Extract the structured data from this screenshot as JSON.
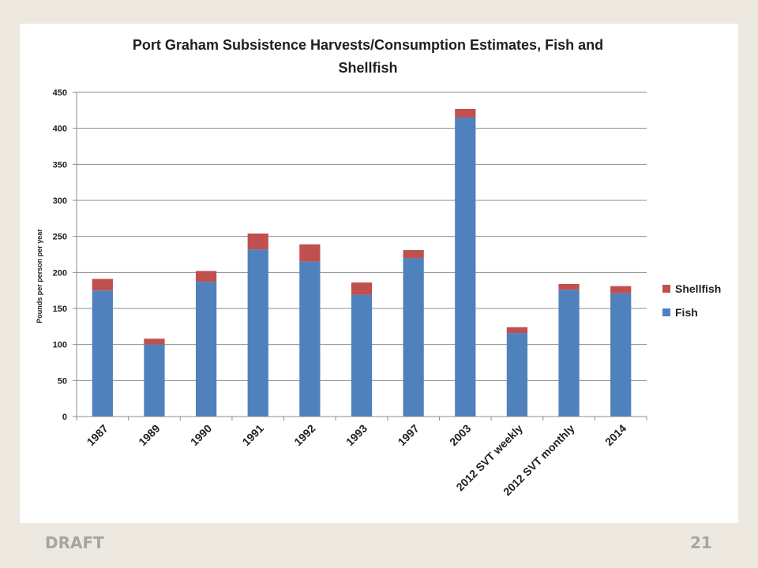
{
  "slide": {
    "footer_left": "DRAFT",
    "page_number": "21"
  },
  "colors": {
    "fish": "#4f81bd",
    "shellfish": "#c0504d",
    "background": "#ede9e1",
    "panel": "#ffffff"
  },
  "chart_data": {
    "type": "bar",
    "stacked": true,
    "title_line1": "Port Graham Subsistence Harvests/Consumption Estimates, Fish and",
    "title_line2": "Shellfish",
    "xlabel": "",
    "ylabel": "Pounds per person per year",
    "ylim": [
      0,
      450
    ],
    "yticks": [
      0,
      50,
      100,
      150,
      200,
      250,
      300,
      350,
      400,
      450
    ],
    "grid": true,
    "legend_position": "right",
    "categories": [
      "1987",
      "1989",
      "1990",
      "1991",
      "1992",
      "1993",
      "1997",
      "2003",
      "2012 SVT weekly",
      "2012 SVT monthly",
      "2014"
    ],
    "series": [
      {
        "name": "Fish",
        "color": "#4f81bd",
        "values": [
          175,
          100,
          187,
          232,
          215,
          169,
          220,
          415,
          116,
          176,
          171
        ]
      },
      {
        "name": "Shellfish",
        "color": "#c0504d",
        "values": [
          16,
          8,
          15,
          22,
          24,
          17,
          11,
          12,
          8,
          8,
          10
        ]
      }
    ],
    "legend_order": [
      "Shellfish",
      "Fish"
    ]
  }
}
